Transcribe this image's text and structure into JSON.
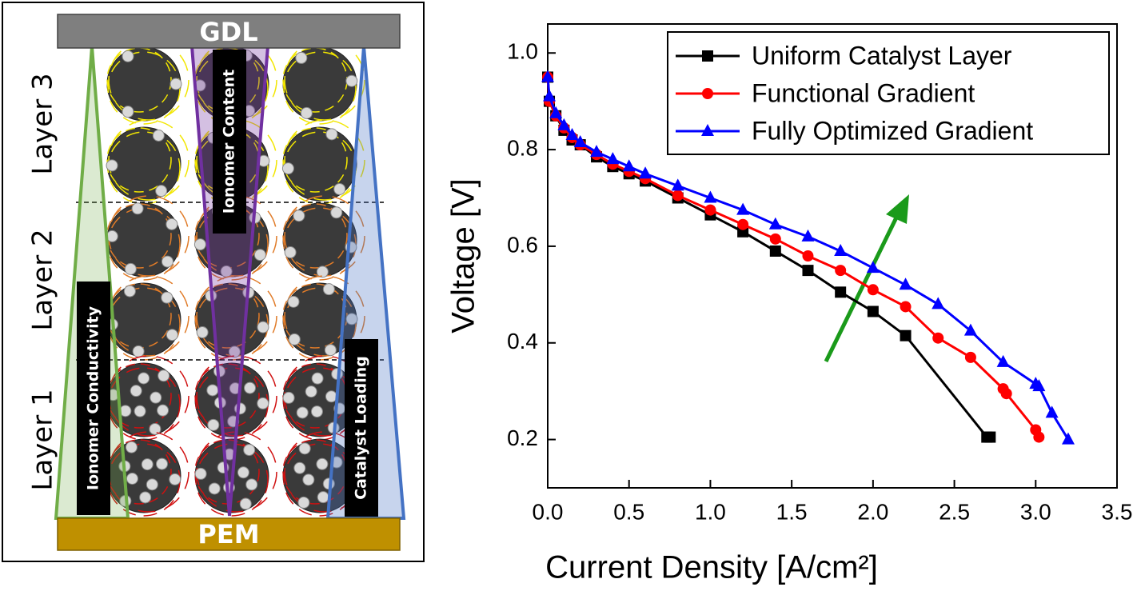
{
  "diagram": {
    "top_layer": "GDL",
    "bottom_layer": "PEM",
    "layers": [
      "Layer 3",
      "Layer 2",
      "Layer 1"
    ],
    "gradients": [
      "Ionomer Content",
      "Ionomer Conductivity",
      "Catalyst Loading"
    ]
  },
  "chart_data": {
    "type": "line",
    "xlabel": "Current Density [A/cm²]",
    "ylabel": "Voltage [V]",
    "xlim": [
      0,
      3.5
    ],
    "ylim": [
      0.1,
      1.06
    ],
    "xticks": [
      {
        "value": 0,
        "label": "0.0"
      },
      0.5,
      {
        "value": 1,
        "label": "1.0"
      },
      1.5,
      {
        "value": 2,
        "label": "2.0"
      },
      2.5,
      {
        "value": 3,
        "label": "3.0"
      },
      3.5
    ],
    "yticks": [
      0.2,
      0.4,
      0.6,
      0.8,
      {
        "value": 1,
        "label": "1.0"
      }
    ],
    "legend": "upper right",
    "series": [
      {
        "name": "Uniform Catalyst Layer",
        "color": "#000000",
        "marker": "square",
        "x": [
          0,
          0.01,
          0.05,
          0.1,
          0.15,
          0.2,
          0.3,
          0.4,
          0.5,
          0.6,
          0.8,
          1.0,
          1.2,
          1.4,
          1.6,
          1.8,
          2.0,
          2.2,
          2.7,
          2.72
        ],
        "values": [
          0.95,
          0.9,
          0.87,
          0.84,
          0.82,
          0.81,
          0.785,
          0.765,
          0.75,
          0.735,
          0.7,
          0.665,
          0.63,
          0.59,
          0.55,
          0.505,
          0.465,
          0.415,
          0.205,
          0.205
        ]
      },
      {
        "name": "Functional Gradient",
        "color": "#ff0000",
        "marker": "circle",
        "x": [
          0,
          0.01,
          0.05,
          0.1,
          0.15,
          0.2,
          0.3,
          0.4,
          0.5,
          0.6,
          0.8,
          1.0,
          1.2,
          1.4,
          1.6,
          1.8,
          2.0,
          2.2,
          2.4,
          2.6,
          2.8,
          2.82,
          3.0,
          3.02
        ],
        "values": [
          0.95,
          0.9,
          0.87,
          0.845,
          0.825,
          0.81,
          0.79,
          0.77,
          0.755,
          0.74,
          0.705,
          0.675,
          0.645,
          0.615,
          0.58,
          0.55,
          0.51,
          0.475,
          0.41,
          0.37,
          0.305,
          0.295,
          0.22,
          0.205
        ]
      },
      {
        "name": "Fully Optimized Gradient",
        "color": "#0000ff",
        "marker": "triangle",
        "x": [
          0,
          0.01,
          0.05,
          0.1,
          0.15,
          0.2,
          0.3,
          0.4,
          0.5,
          0.6,
          0.8,
          1.0,
          1.2,
          1.4,
          1.6,
          1.8,
          2.0,
          2.2,
          2.4,
          2.6,
          2.8,
          3.0,
          3.02,
          3.1,
          3.2
        ],
        "values": [
          0.95,
          0.91,
          0.875,
          0.85,
          0.83,
          0.815,
          0.795,
          0.78,
          0.765,
          0.75,
          0.725,
          0.7,
          0.675,
          0.645,
          0.62,
          0.59,
          0.555,
          0.52,
          0.48,
          0.425,
          0.36,
          0.315,
          0.31,
          0.255,
          0.2
        ]
      }
    ]
  }
}
